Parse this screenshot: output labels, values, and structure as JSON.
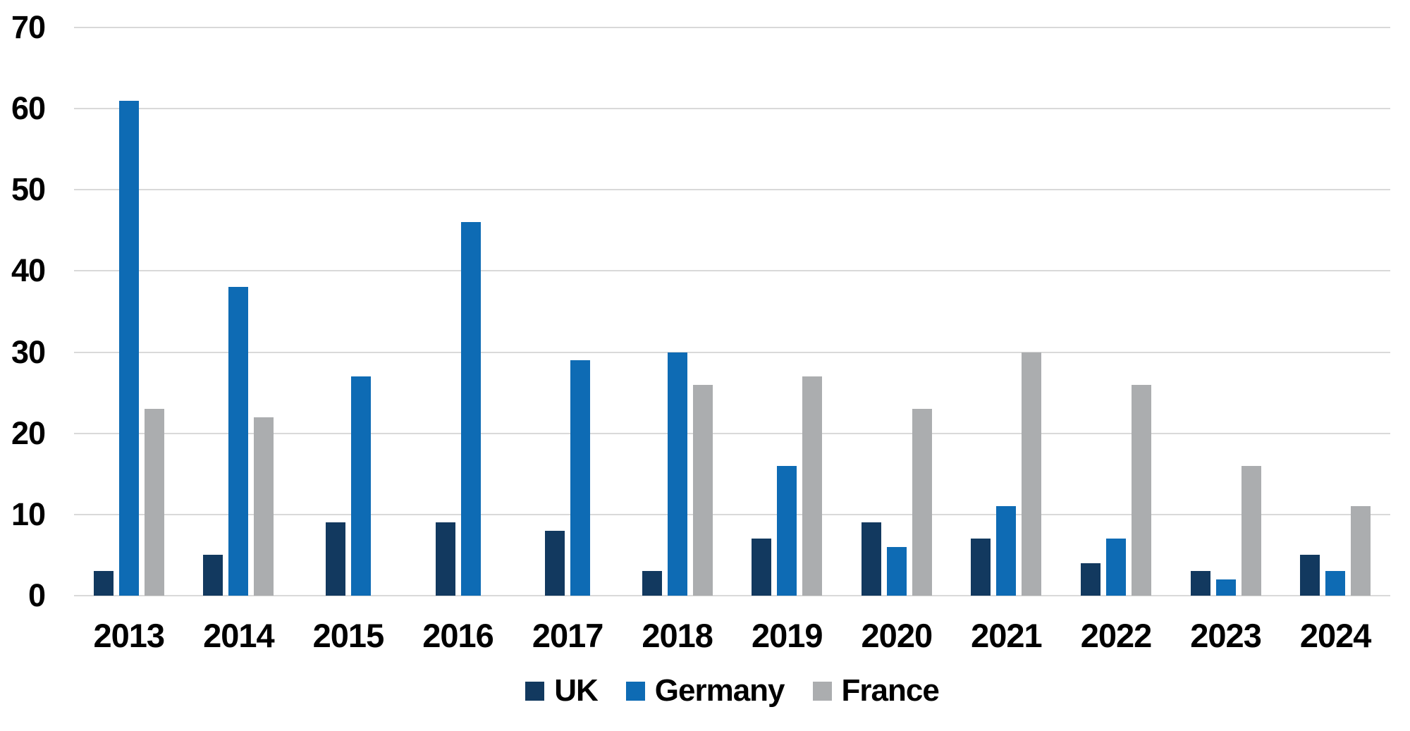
{
  "chart_data": {
    "type": "bar",
    "title": "",
    "xlabel": "",
    "ylabel": "",
    "categories": [
      "2013",
      "2014",
      "2015",
      "2016",
      "2017",
      "2018",
      "2019",
      "2020",
      "2021",
      "2022",
      "2023",
      "2024"
    ],
    "series": [
      {
        "name": "UK",
        "color": "#12395F",
        "values": [
          3,
          5,
          9,
          9,
          8,
          3,
          7,
          9,
          7,
          4,
          3,
          5
        ]
      },
      {
        "name": "Germany",
        "color": "#0E6BB4",
        "values": [
          61,
          38,
          27,
          46,
          29,
          30,
          16,
          6,
          11,
          7,
          2,
          3
        ]
      },
      {
        "name": "France",
        "color": "#ABADAF",
        "values": [
          23,
          22,
          0,
          0,
          0,
          26,
          27,
          23,
          30,
          26,
          16,
          11
        ]
      }
    ],
    "ylim": [
      0,
      70
    ],
    "yticks": [
      0,
      10,
      20,
      30,
      40,
      50,
      60,
      70
    ],
    "grid": "horizontal-only",
    "gridline_color": "#D9D9D9",
    "legend_position": "bottom-center",
    "background_color": "#FFFFFF",
    "text_color": "#000000"
  }
}
